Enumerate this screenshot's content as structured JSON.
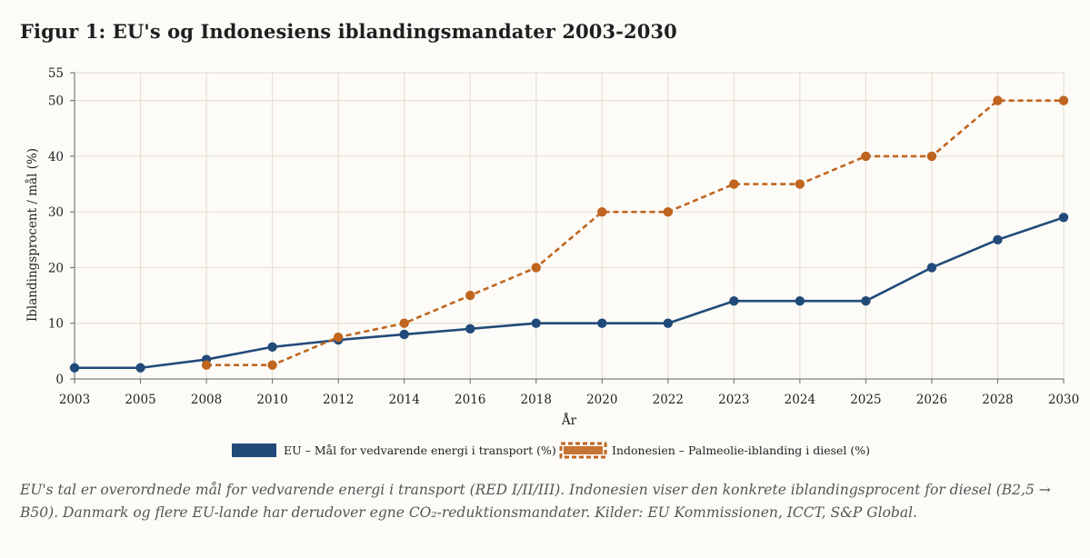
{
  "title": "Figur 1: EU's og Indonesiens iblandingsmandater 2003-2030",
  "footnote": "EU's tal er overordnede mål for vedvarende energi i transport (RED I/II/III). Indonesien viser den konkrete iblandingsprocent for diesel (B2,5 → B50). Danmark og flere EU-lande har derudover egne CO₂-reduktionsmandater. Kilder: EU Kommissionen, ICCT, S&P Global.",
  "colors": {
    "eu": "#214a7a",
    "indonesia": "#c0651f",
    "grid": "#e6e1d2",
    "axis": "#666666"
  },
  "chart_data": {
    "type": "line",
    "xlabel": "År",
    "ylabel": "Iblandingsprocent / mål (%)",
    "ylim": [
      0,
      55
    ],
    "yticks": [
      "0",
      "10",
      "20",
      "30",
      "40",
      "50",
      "55"
    ],
    "categories": [
      "2003",
      "2005",
      "2008",
      "2010",
      "2012",
      "2014",
      "2016",
      "2018",
      "2020",
      "2022",
      "2023",
      "2024",
      "2025",
      "2026",
      "2028",
      "2030"
    ],
    "grid": true,
    "legend_position": "bottom-center",
    "series": [
      {
        "name": "EU – Mål for vedvarende energi i transport (%)",
        "style": "solid",
        "values": [
          2,
          2,
          3.5,
          5.75,
          7,
          8,
          9,
          10,
          10,
          10,
          14,
          14,
          14,
          20,
          25,
          29
        ]
      },
      {
        "name": "Indonesien – Palmeolie-iblanding i diesel (%)",
        "style": "dashed",
        "values": [
          null,
          null,
          2.5,
          2.5,
          7.5,
          10,
          15,
          20,
          30,
          30,
          35,
          35,
          40,
          40,
          50,
          50
        ]
      }
    ]
  }
}
